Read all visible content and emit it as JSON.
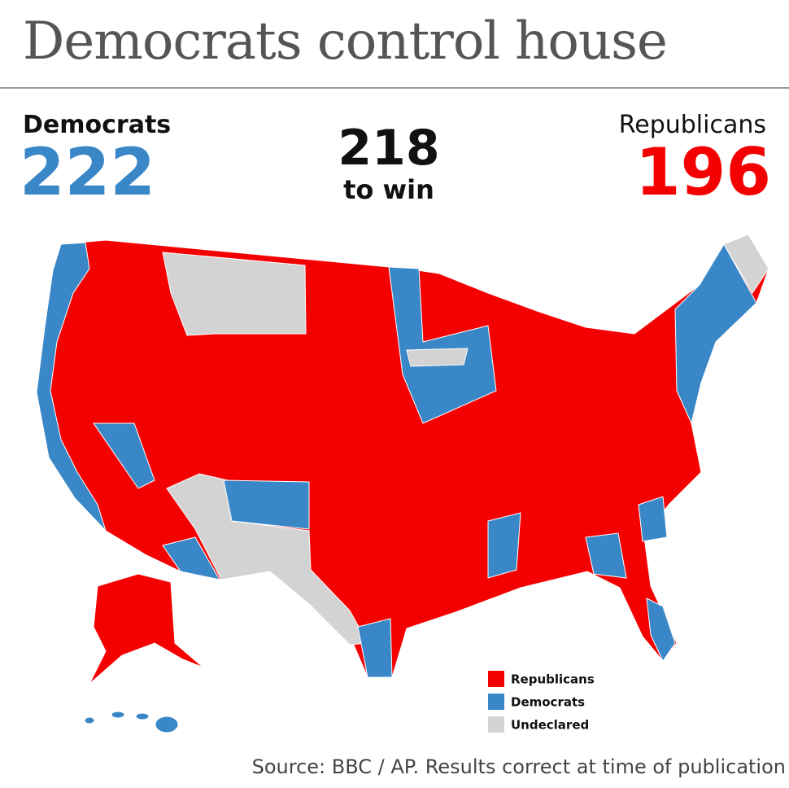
{
  "header": {
    "title": "Democrats control house"
  },
  "scoreboard": {
    "democrats": {
      "label": "Democrats",
      "seats": 222,
      "color": "#3a87c8"
    },
    "threshold": {
      "seats": 218,
      "label": "to win"
    },
    "republicans": {
      "label": "Republicans",
      "seats": 196,
      "color": "#f50000"
    }
  },
  "legend": [
    {
      "label": "Republicans",
      "color": "#f50000"
    },
    {
      "label": "Democrats",
      "color": "#3a87c8"
    },
    {
      "label": "Undeclared",
      "color": "#d3d3d3"
    }
  ],
  "source": "Source: BBC / AP. Results correct at time of publication"
}
